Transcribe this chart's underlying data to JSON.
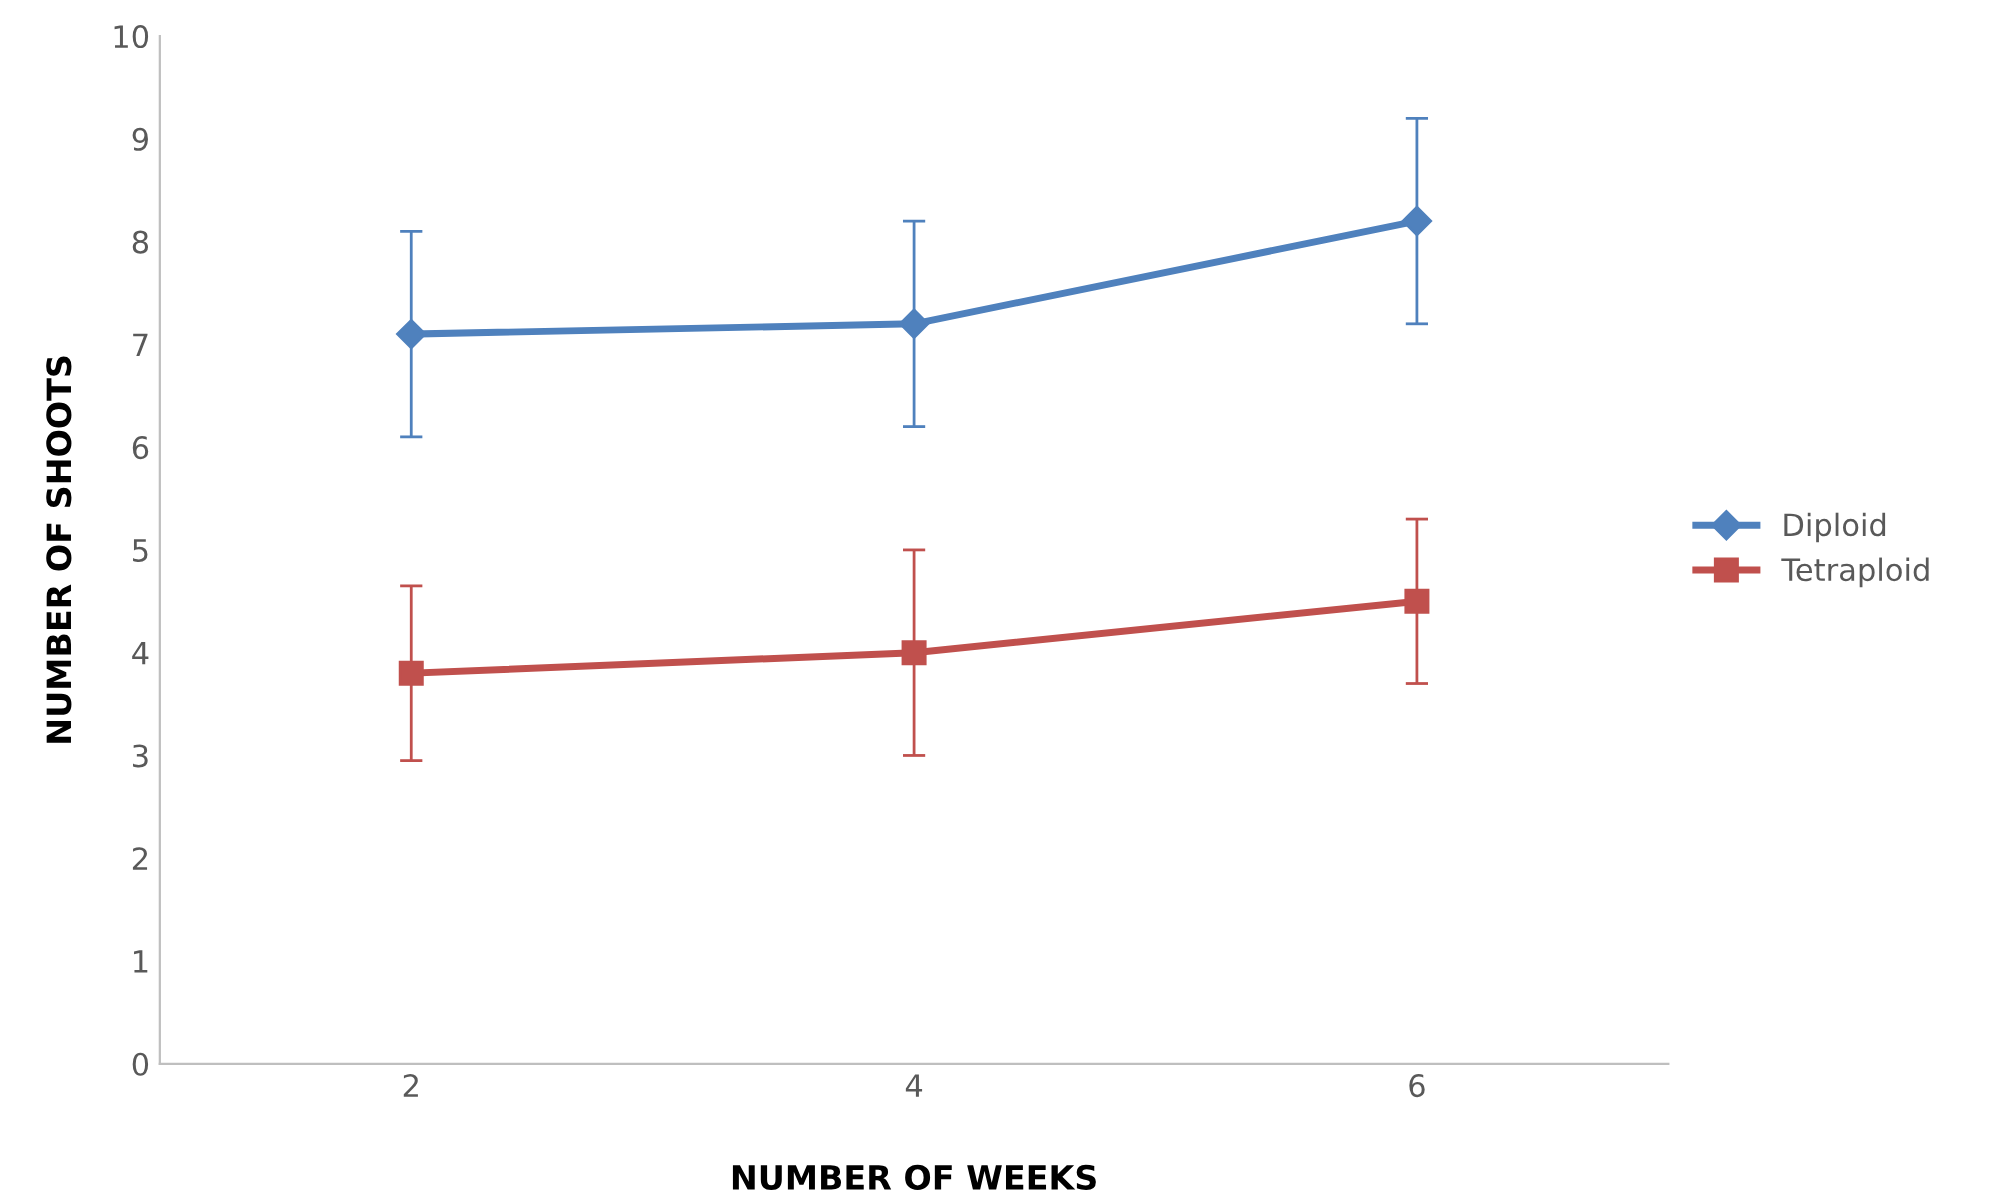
{
  "chart_data": {
    "type": "line",
    "xlabel": "NUMBER OF WEEKS",
    "ylabel": "NUMBER OF SHOOTS",
    "categories": [
      "2",
      "4",
      "6"
    ],
    "ylim": [
      0,
      10
    ],
    "yticks": [
      0,
      1,
      2,
      3,
      4,
      5,
      6,
      7,
      8,
      9,
      10
    ],
    "grid": false,
    "legend": "right",
    "series": [
      {
        "name": "Diploid",
        "color": "#4f81bd",
        "marker": "diamond",
        "values": [
          7.1,
          7.2,
          8.2
        ],
        "errors": [
          1,
          1,
          1
        ]
      },
      {
        "name": "Tetraploid",
        "color": "#c0504d",
        "marker": "square",
        "values": [
          3.8,
          4.0,
          4.5
        ],
        "errors": [
          0.85,
          1,
          0.8
        ]
      }
    ]
  }
}
